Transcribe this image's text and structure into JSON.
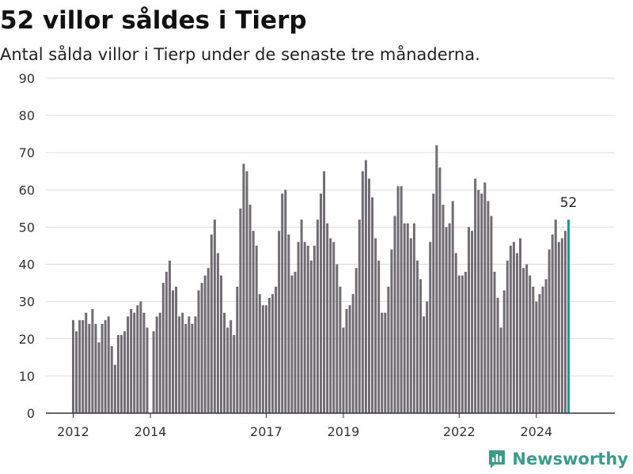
{
  "title": "52 villor såldes i Tierp",
  "subtitle": "Antal sålda villor i Tierp under de senaste tre månaderna.",
  "brand": {
    "name": "Newsworthy",
    "color": "#3b9c8c",
    "icon": "newsworthy-logo-icon"
  },
  "colors": {
    "bar": "#6f6d72",
    "highlight": "#1a9a93",
    "grid": "#dddddd",
    "axis": "#333333",
    "text": "#333333"
  },
  "chart_data": {
    "type": "bar",
    "title": "52 villor såldes i Tierp",
    "subtitle": "Antal sålda villor i Tierp under de senaste tre månaderna.",
    "xlabel": "",
    "ylabel": "",
    "ylim": [
      0,
      90
    ],
    "yticks": [
      "0",
      "10",
      "20",
      "30",
      "40",
      "50",
      "60",
      "70",
      "80",
      "90"
    ],
    "xticks": [
      "2012",
      "2014",
      "2017",
      "2019",
      "2022",
      "2024"
    ],
    "grid": true,
    "legend": "none",
    "start": "2012-01",
    "frequency": "monthly",
    "highlight_label": "52",
    "values": [
      25,
      22,
      25,
      25,
      27,
      24,
      28,
      24,
      19,
      24,
      25,
      26,
      18,
      13,
      21,
      21,
      22,
      26,
      28,
      27,
      29,
      30,
      27,
      23,
      0,
      22,
      26,
      27,
      35,
      38,
      41,
      33,
      34,
      26,
      27,
      24,
      26,
      24,
      26,
      33,
      35,
      37,
      39,
      48,
      52,
      43,
      37,
      27,
      23,
      25,
      21,
      34,
      55,
      67,
      65,
      56,
      49,
      45,
      32,
      29,
      29,
      31,
      32,
      34,
      49,
      59,
      60,
      48,
      37,
      38,
      46,
      52,
      46,
      45,
      41,
      45,
      52,
      59,
      65,
      51,
      47,
      46,
      40,
      34,
      23,
      28,
      29,
      32,
      39,
      52,
      65,
      68,
      63,
      58,
      47,
      41,
      27,
      27,
      34,
      44,
      53,
      61,
      61,
      51,
      51,
      47,
      51,
      41,
      36,
      26,
      30,
      46,
      59,
      72,
      66,
      56,
      50,
      51,
      57,
      43,
      37,
      37,
      38,
      50,
      49,
      63,
      60,
      59,
      62,
      57,
      53,
      38,
      31,
      23,
      33,
      41,
      45,
      46,
      43,
      47,
      39,
      40,
      37,
      34,
      30,
      32,
      34,
      36,
      44,
      48,
      52,
      46,
      47,
      49,
      52
    ]
  }
}
